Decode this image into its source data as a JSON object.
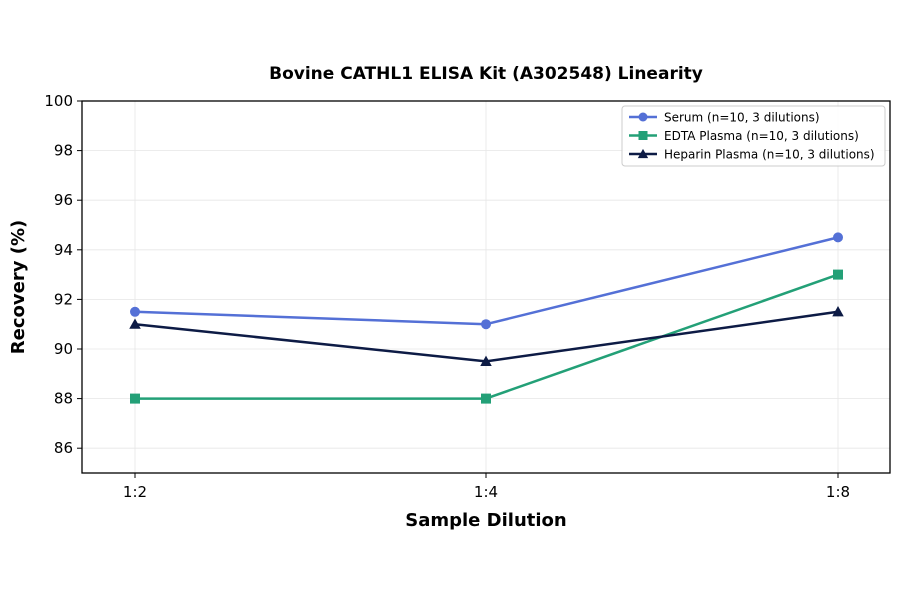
{
  "chart_data": {
    "type": "line",
    "title": "Bovine CATHL1 ELISA Kit (A302548) Linearity",
    "xlabel": "Sample Dilution",
    "ylabel": "Recovery (%)",
    "categories": [
      "1:2",
      "1:4",
      "1:8"
    ],
    "ylim": [
      85,
      100
    ],
    "yticks": [
      86,
      88,
      90,
      92,
      94,
      96,
      98,
      100
    ],
    "grid": true,
    "legend_position": "top-right",
    "series": [
      {
        "name": "Serum (n=10, 3 dilutions)",
        "values": [
          91.5,
          91.0,
          94.5
        ],
        "color": "#5470d6",
        "marker": "circle"
      },
      {
        "name": "EDTA Plasma (n=10, 3 dilutions)",
        "values": [
          88.0,
          88.0,
          93.0
        ],
        "color": "#23a077",
        "marker": "square"
      },
      {
        "name": "Heparin Plasma (n=10, 3 dilutions)",
        "values": [
          91.0,
          89.5,
          91.5
        ],
        "color": "#0d1b45",
        "marker": "triangle"
      }
    ]
  }
}
